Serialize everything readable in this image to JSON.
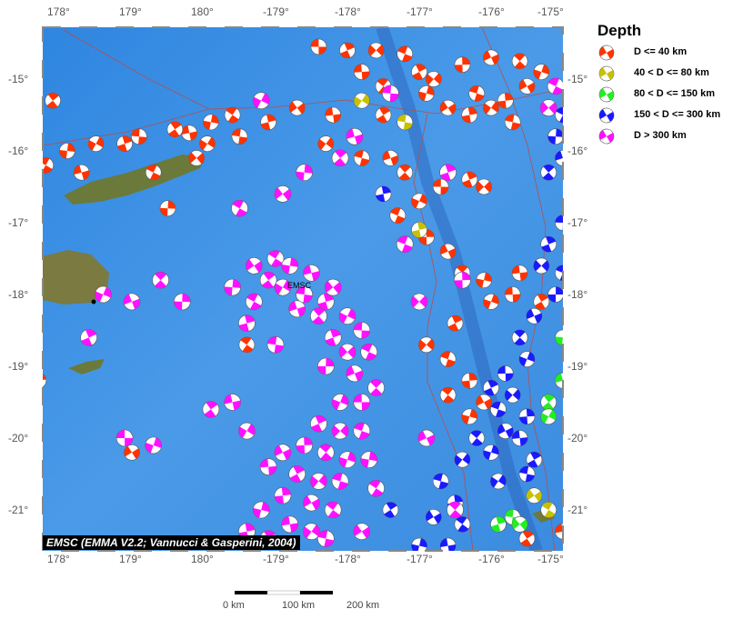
{
  "map": {
    "lon_ticks": [
      "178°",
      "179°",
      "180°",
      "-179°",
      "-178°",
      "-177°",
      "-176°",
      "-175°"
    ],
    "lat_ticks": [
      "-15°",
      "-16°",
      "-17°",
      "-18°",
      "-19°",
      "-20°",
      "-21°"
    ],
    "marker_label": "EMSC",
    "credit": "EMSC (EMMA V2.2; Vannucci & Gasperini, 2004)",
    "ocean_color": "#3a8fe0",
    "land_color": "#6b7a3a"
  },
  "legend": {
    "title": "Depth",
    "items": [
      {
        "label": "D <= 40 km",
        "color": "#ff3300"
      },
      {
        "label": "40 < D <= 80 km",
        "color": "#c8c000"
      },
      {
        "label": "80 < D <= 150 km",
        "color": "#22ee22"
      },
      {
        "label": "150 < D <= 300 km",
        "color": "#1a1aff"
      },
      {
        "label": "D > 300 km",
        "color": "#ff11ff"
      }
    ]
  },
  "scale_bar": {
    "labels": [
      "0 km",
      "100 km",
      "200 km"
    ]
  },
  "events": [
    [
      -178.4,
      -14.55,
      0
    ],
    [
      -178.0,
      -14.6,
      0
    ],
    [
      -177.6,
      -14.6,
      0
    ],
    [
      -177.2,
      -14.65,
      0
    ],
    [
      -176.4,
      -14.8,
      0
    ],
    [
      -176.0,
      -14.7,
      0
    ],
    [
      -175.6,
      -14.75,
      0
    ],
    [
      -175.3,
      -14.9,
      0
    ],
    [
      -177.8,
      -14.9,
      0
    ],
    [
      -177.0,
      -14.9,
      0
    ],
    [
      -176.8,
      -15.0,
      0
    ],
    [
      -176.2,
      -15.2,
      0
    ],
    [
      -175.8,
      -15.3,
      0
    ],
    [
      -175.5,
      -15.1,
      0
    ],
    [
      -177.5,
      -15.1,
      0
    ],
    [
      -176.9,
      -15.2,
      0
    ],
    [
      -178.2,
      -15.5,
      0
    ],
    [
      -177.5,
      -15.5,
      0
    ],
    [
      -176.0,
      -15.4,
      0
    ],
    [
      -175.7,
      -15.6,
      0
    ],
    [
      -176.3,
      -15.5,
      0
    ],
    [
      -176.6,
      -15.4,
      0
    ],
    [
      -179.6,
      -15.5,
      0
    ],
    [
      -179.9,
      -15.6,
      0
    ],
    [
      179.8,
      -15.75,
      0
    ],
    [
      179.6,
      -15.7,
      0
    ],
    [
      -179.95,
      -15.9,
      0
    ],
    [
      -179.5,
      -15.8,
      0
    ],
    [
      -179.1,
      -15.6,
      0
    ],
    [
      -178.7,
      -15.4,
      0
    ],
    [
      177.8,
      -16.2,
      0
    ],
    [
      178.1,
      -16.0,
      0
    ],
    [
      178.3,
      -16.3,
      0
    ],
    [
      177.9,
      -15.3,
      0
    ],
    [
      178.5,
      -15.9,
      0
    ],
    [
      179.1,
      -15.8,
      0
    ],
    [
      178.9,
      -15.9,
      0
    ],
    [
      179.9,
      -16.1,
      0
    ],
    [
      179.3,
      -16.3,
      0
    ],
    [
      179.5,
      -16.8,
      0
    ],
    [
      -177.4,
      -16.1,
      0
    ],
    [
      -177.2,
      -16.3,
      0
    ],
    [
      -177.0,
      -16.7,
      0
    ],
    [
      -176.7,
      -16.5,
      0
    ],
    [
      -176.3,
      -16.4,
      0
    ],
    [
      -176.1,
      -16.5,
      0
    ],
    [
      -177.3,
      -16.9,
      0
    ],
    [
      -176.9,
      -17.2,
      0
    ],
    [
      -176.6,
      -17.4,
      0
    ],
    [
      -176.4,
      -17.7,
      0
    ],
    [
      -176.0,
      -18.1,
      0
    ],
    [
      -175.7,
      -18.0,
      0
    ],
    [
      -176.5,
      -18.4,
      0
    ],
    [
      -176.9,
      -18.7,
      0
    ],
    [
      -176.6,
      -18.9,
      0
    ],
    [
      -176.3,
      -19.2,
      0
    ],
    [
      -176.1,
      -19.5,
      0
    ],
    [
      -176.6,
      -19.4,
      0
    ],
    [
      -176.3,
      -19.7,
      0
    ],
    [
      -175.6,
      -17.7,
      0
    ],
    [
      -175.3,
      -18.1,
      0
    ],
    [
      -178.3,
      -15.9,
      0
    ],
    [
      -177.8,
      -16.1,
      0
    ],
    [
      177.7,
      -19.2,
      0
    ],
    [
      179.0,
      -20.2,
      0
    ],
    [
      -179.4,
      -18.7,
      0
    ],
    [
      -176.1,
      -17.8,
      0
    ],
    [
      -175.0,
      -21.3,
      0
    ],
    [
      -175.5,
      -21.4,
      0
    ],
    [
      -177.8,
      -15.3,
      1
    ],
    [
      -177.2,
      -15.6,
      1
    ],
    [
      -177.0,
      -17.1,
      1
    ],
    [
      -175.4,
      -20.8,
      1
    ],
    [
      -175.2,
      -21.0,
      1
    ],
    [
      -175.0,
      -18.6,
      2
    ],
    [
      -175.0,
      -19.2,
      2
    ],
    [
      -175.2,
      -19.5,
      2
    ],
    [
      -175.2,
      -19.7,
      2
    ],
    [
      -175.7,
      -21.1,
      2
    ],
    [
      -175.9,
      -21.2,
      2
    ],
    [
      -175.6,
      -21.2,
      2
    ],
    [
      -175.0,
      -15.5,
      3
    ],
    [
      -175.1,
      -15.8,
      3
    ],
    [
      -175.0,
      -16.1,
      3
    ],
    [
      -175.2,
      -16.3,
      3
    ],
    [
      -174.9,
      -16.7,
      3
    ],
    [
      -175.0,
      -17.0,
      3
    ],
    [
      -175.2,
      -17.3,
      3
    ],
    [
      -175.3,
      -17.6,
      3
    ],
    [
      -175.0,
      -17.7,
      3
    ],
    [
      -175.1,
      -18.0,
      3
    ],
    [
      -175.4,
      -18.3,
      3
    ],
    [
      -175.6,
      -18.6,
      3
    ],
    [
      -175.5,
      -18.9,
      3
    ],
    [
      -175.8,
      -19.1,
      3
    ],
    [
      -176.0,
      -19.3,
      3
    ],
    [
      -175.7,
      -19.4,
      3
    ],
    [
      -175.9,
      -19.6,
      3
    ],
    [
      -175.5,
      -19.7,
      3
    ],
    [
      -175.8,
      -19.9,
      3
    ],
    [
      -176.2,
      -20.0,
      3
    ],
    [
      -176.0,
      -20.2,
      3
    ],
    [
      -175.6,
      -20.0,
      3
    ],
    [
      -175.4,
      -20.3,
      3
    ],
    [
      -176.4,
      -20.3,
      3
    ],
    [
      -176.7,
      -20.6,
      3
    ],
    [
      -176.5,
      -20.9,
      3
    ],
    [
      -176.8,
      -21.1,
      3
    ],
    [
      -176.4,
      -21.2,
      3
    ],
    [
      -177.0,
      -21.5,
      3
    ],
    [
      -176.6,
      -21.5,
      3
    ],
    [
      -177.4,
      -21.0,
      3
    ],
    [
      -175.9,
      -20.6,
      3
    ],
    [
      -175.5,
      -20.5,
      3
    ],
    [
      -177.5,
      -16.6,
      3
    ],
    [
      -179.3,
      -17.6,
      4
    ],
    [
      -179.0,
      -17.5,
      4
    ],
    [
      -178.8,
      -17.6,
      4
    ],
    [
      -178.5,
      -17.7,
      4
    ],
    [
      -179.1,
      -17.8,
      4
    ],
    [
      -178.9,
      -17.9,
      4
    ],
    [
      -178.6,
      -18.0,
      4
    ],
    [
      -178.3,
      -18.1,
      4
    ],
    [
      -178.2,
      -17.9,
      4
    ],
    [
      -179.3,
      -18.1,
      4
    ],
    [
      -179.6,
      -17.9,
      4
    ],
    [
      -178.7,
      -18.2,
      4
    ],
    [
      -178.4,
      -18.3,
      4
    ],
    [
      -178.0,
      -18.3,
      4
    ],
    [
      -177.8,
      -18.5,
      4
    ],
    [
      -178.2,
      -18.6,
      4
    ],
    [
      -178.0,
      -18.8,
      4
    ],
    [
      -177.7,
      -18.8,
      4
    ],
    [
      -178.3,
      -19.0,
      4
    ],
    [
      -177.9,
      -19.1,
      4
    ],
    [
      -177.6,
      -19.3,
      4
    ],
    [
      -178.1,
      -19.5,
      4
    ],
    [
      -177.8,
      -19.5,
      4
    ],
    [
      -178.4,
      -19.8,
      4
    ],
    [
      -178.1,
      -19.9,
      4
    ],
    [
      -177.8,
      -19.9,
      4
    ],
    [
      -178.6,
      -20.1,
      4
    ],
    [
      -178.9,
      -20.2,
      4
    ],
    [
      -178.3,
      -20.2,
      4
    ],
    [
      -178.0,
      -20.3,
      4
    ],
    [
      -179.1,
      -20.4,
      4
    ],
    [
      -178.7,
      -20.5,
      4
    ],
    [
      -178.4,
      -20.6,
      4
    ],
    [
      -178.1,
      -20.6,
      4
    ],
    [
      -178.9,
      -20.8,
      4
    ],
    [
      -178.5,
      -20.9,
      4
    ],
    [
      -178.2,
      -21.0,
      4
    ],
    [
      -179.2,
      -21.0,
      4
    ],
    [
      -178.8,
      -21.2,
      4
    ],
    [
      -179.1,
      -21.4,
      4
    ],
    [
      -178.5,
      -21.3,
      4
    ],
    [
      -178.3,
      -21.4,
      4
    ],
    [
      -179.4,
      -21.3,
      4
    ],
    [
      -177.8,
      -21.3,
      4
    ],
    [
      -177.6,
      -20.7,
      4
    ],
    [
      -177.7,
      -20.3,
      4
    ],
    [
      -179.6,
      -19.5,
      4
    ],
    [
      -179.9,
      -19.6,
      4
    ],
    [
      -179.4,
      -19.9,
      4
    ],
    [
      -179.0,
      -18.7,
      4
    ],
    [
      -179.4,
      -18.4,
      4
    ],
    [
      -178.9,
      -16.6,
      4
    ],
    [
      -179.5,
      -16.8,
      4
    ],
    [
      -178.6,
      -16.3,
      4
    ],
    [
      -177.9,
      -15.8,
      4
    ],
    [
      -178.1,
      -16.1,
      4
    ],
    [
      -179.2,
      -15.3,
      4
    ],
    [
      -177.4,
      -15.2,
      4
    ],
    [
      -176.6,
      -16.3,
      4
    ],
    [
      -175.2,
      -15.4,
      4
    ],
    [
      -175.1,
      -15.1,
      4
    ],
    [
      179.7,
      -18.1,
      4
    ],
    [
      179.0,
      -18.1,
      4
    ],
    [
      179.4,
      -17.8,
      4
    ],
    [
      178.6,
      -18.0,
      4
    ],
    [
      178.9,
      -20.0,
      4
    ],
    [
      178.4,
      -18.6,
      4
    ],
    [
      -177.0,
      -18.1,
      4
    ],
    [
      -177.2,
      -17.3,
      4
    ],
    [
      -176.4,
      -17.8,
      4
    ],
    [
      -176.9,
      -20.0,
      4
    ],
    [
      -176.5,
      -21.0,
      4
    ],
    [
      179.3,
      -20.1,
      4
    ]
  ]
}
